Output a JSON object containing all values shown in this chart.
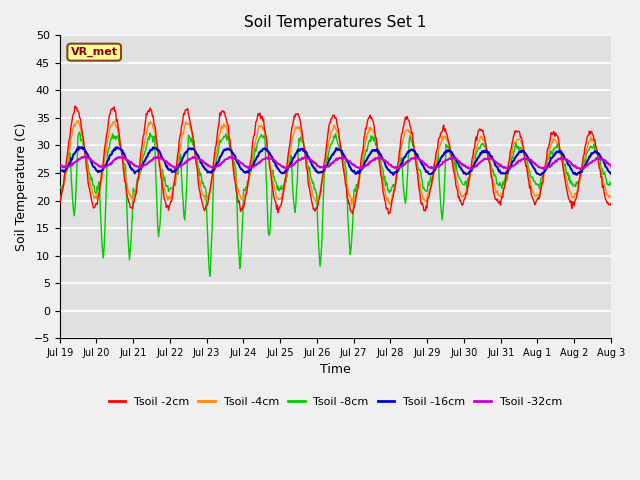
{
  "title": "Soil Temperatures Set 1",
  "xlabel": "Time",
  "ylabel": "Soil Temperature (C)",
  "ylim": [
    -5,
    50
  ],
  "yticks": [
    -5,
    0,
    5,
    10,
    15,
    20,
    25,
    30,
    35,
    40,
    45,
    50
  ],
  "bg_color": "#e0e0e0",
  "fig_color": "#f0f0f0",
  "grid_color": "#ffffff",
  "annotation_text": "VR_met",
  "annotation_bg": "#ffff99",
  "annotation_border": "#8B4513",
  "line_colors": {
    "2cm": "#ff0000",
    "4cm": "#ff8c00",
    "8cm": "#00cc00",
    "16cm": "#0000cc",
    "32cm": "#cc00cc"
  },
  "legend_labels": [
    "Tsoil -2cm",
    "Tsoil -4cm",
    "Tsoil -8cm",
    "Tsoil -16cm",
    "Tsoil -32cm"
  ],
  "date_labels": [
    "Jul 19",
    "Jul 20",
    "Jul 21",
    "Jul 22",
    "Jul 23",
    "Jul 24",
    "Jul 25",
    "Jul 26",
    "Jul 27",
    "Jul 28",
    "Jul 29",
    "Jul 30",
    "Jul 31",
    "Aug 1",
    "Aug 2",
    "Aug 3"
  ],
  "n_days": 15,
  "points_per_day": 48
}
